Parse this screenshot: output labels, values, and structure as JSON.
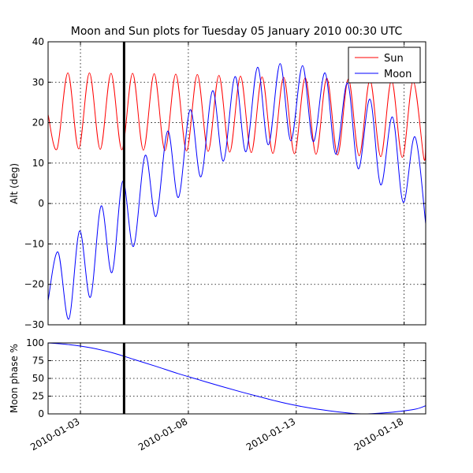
{
  "chart_data": [
    {
      "type": "line",
      "title": "Moon and Sun plots for Tuesday 05 January 2010 00:30 UTC",
      "xlabel": "",
      "ylabel": "Alt (deg)",
      "xlim": [
        "2010-01-01 12:00",
        "2010-01-19 00:00"
      ],
      "ylim": [
        -30,
        40
      ],
      "y_ticks": [
        "−30",
        "−20",
        "−10",
        "0",
        "10",
        "20",
        "30",
        "40"
      ],
      "grid": true,
      "legend_position": "top-right",
      "marker": {
        "x": "2010-01-05 00:30"
      },
      "series": [
        {
          "name": "Sun",
          "color": "#ff0000",
          "x": [
            "2010-01-01 12:00",
            "2010-01-01 22:00",
            "2010-01-02 10:00",
            "2010-01-02 22:00",
            "2010-01-03 10:00",
            "2010-01-03 22:00",
            "2010-01-04 10:00",
            "2010-01-04 22:00",
            "2010-01-05 10:00",
            "2010-01-05 22:00",
            "2010-01-06 10:00",
            "2010-01-06 22:00",
            "2010-01-07 10:00",
            "2010-01-07 22:00",
            "2010-01-08 10:00",
            "2010-01-08 22:00",
            "2010-01-09 10:00",
            "2010-01-09 22:00",
            "2010-01-10 10:00",
            "2010-01-10 22:00",
            "2010-01-11 10:00",
            "2010-01-11 22:00",
            "2010-01-12 10:00",
            "2010-01-12 22:00",
            "2010-01-13 10:00",
            "2010-01-13 22:00",
            "2010-01-14 10:00",
            "2010-01-14 22:00",
            "2010-01-15 10:00",
            "2010-01-15 22:00",
            "2010-01-16 10:00",
            "2010-01-16 22:00",
            "2010-01-17 10:00",
            "2010-01-17 22:00",
            "2010-01-18 10:00",
            "2010-01-18 22:00",
            "2010-01-19 00:00"
          ],
          "values": [
            22,
            13.5,
            32.3,
            13.5,
            32.3,
            13.4,
            32.2,
            13.3,
            32.2,
            13.2,
            32.1,
            13.1,
            32,
            13,
            31.9,
            12.9,
            31.7,
            12.7,
            31.5,
            12.6,
            31.3,
            12.4,
            31.2,
            12.3,
            31.1,
            12.2,
            31,
            12,
            30.8,
            11.8,
            30.6,
            11.6,
            30.5,
            11.4,
            30.3,
            11.1,
            17
          ]
        },
        {
          "name": "Moon",
          "color": "#0000ff",
          "x": [
            "2010-01-01 12:00",
            "2010-01-01 23:00",
            "2010-01-02 11:00",
            "2010-01-02 23:00",
            "2010-01-03 11:00",
            "2010-01-03 23:00",
            "2010-01-04 11:00",
            "2010-01-04 23:00",
            "2010-01-05 11:00",
            "2010-01-06 00:00",
            "2010-01-06 12:00",
            "2010-01-07 01:00",
            "2010-01-07 13:00",
            "2010-01-08 02:00",
            "2010-01-08 14:00",
            "2010-01-09 03:00",
            "2010-01-09 15:00",
            "2010-01-10 04:00",
            "2010-01-10 16:00",
            "2010-01-11 05:00",
            "2010-01-11 17:00",
            "2010-01-12 06:00",
            "2010-01-12 18:00",
            "2010-01-13 07:00",
            "2010-01-13 19:00",
            "2010-01-14 08:00",
            "2010-01-14 20:00",
            "2010-01-15 09:00",
            "2010-01-15 21:00",
            "2010-01-16 10:00",
            "2010-01-16 22:00",
            "2010-01-17 11:00",
            "2010-01-17 23:00",
            "2010-01-18 12:00",
            "2010-01-19 00:00"
          ],
          "values": [
            -24,
            -12,
            -28.6,
            -6.8,
            -23.2,
            -0.6,
            -17.1,
            5.5,
            -10.6,
            11.9,
            -3.2,
            17.9,
            1.5,
            23.2,
            6.6,
            27.9,
            10.5,
            31.4,
            12.8,
            33.7,
            14.5,
            34.6,
            15.5,
            34.1,
            15.3,
            32.3,
            12.2,
            29.8,
            8.6,
            25.8,
            4.6,
            21.4,
            0.3,
            16.5,
            -5
          ]
        }
      ]
    },
    {
      "type": "line",
      "title": "",
      "xlabel": "",
      "ylabel": "Moon phase %",
      "xlim": [
        "2010-01-01 12:00",
        "2010-01-19 00:00"
      ],
      "ylim": [
        0,
        100
      ],
      "y_ticks": [
        "0",
        "25",
        "50",
        "75",
        "100"
      ],
      "x_ticks": [
        "2010-01-03",
        "2010-01-08",
        "2010-01-13",
        "2010-01-18"
      ],
      "grid": true,
      "marker": {
        "x": "2010-01-05 00:30"
      },
      "series": [
        {
          "color": "#0000ff",
          "x": [
            "2010-01-01 12:00",
            "2010-01-02 12:00",
            "2010-01-03 12:00",
            "2010-01-04 12:00",
            "2010-01-05 12:00",
            "2010-01-06 12:00",
            "2010-01-07 12:00",
            "2010-01-08 12:00",
            "2010-01-09 12:00",
            "2010-01-10 12:00",
            "2010-01-11 12:00",
            "2010-01-12 12:00",
            "2010-01-13 12:00",
            "2010-01-14 12:00",
            "2010-01-15 12:00",
            "2010-01-16 00:00",
            "2010-01-16 12:00",
            "2010-01-17 12:00",
            "2010-01-18 12:00",
            "2010-01-19 00:00"
          ],
          "values": [
            100,
            97.5,
            93,
            86,
            76.5,
            67,
            57,
            48,
            39,
            30.5,
            22.5,
            15,
            9,
            4.5,
            1,
            0,
            0.3,
            2.5,
            6.5,
            11.5
          ]
        }
      ]
    }
  ]
}
